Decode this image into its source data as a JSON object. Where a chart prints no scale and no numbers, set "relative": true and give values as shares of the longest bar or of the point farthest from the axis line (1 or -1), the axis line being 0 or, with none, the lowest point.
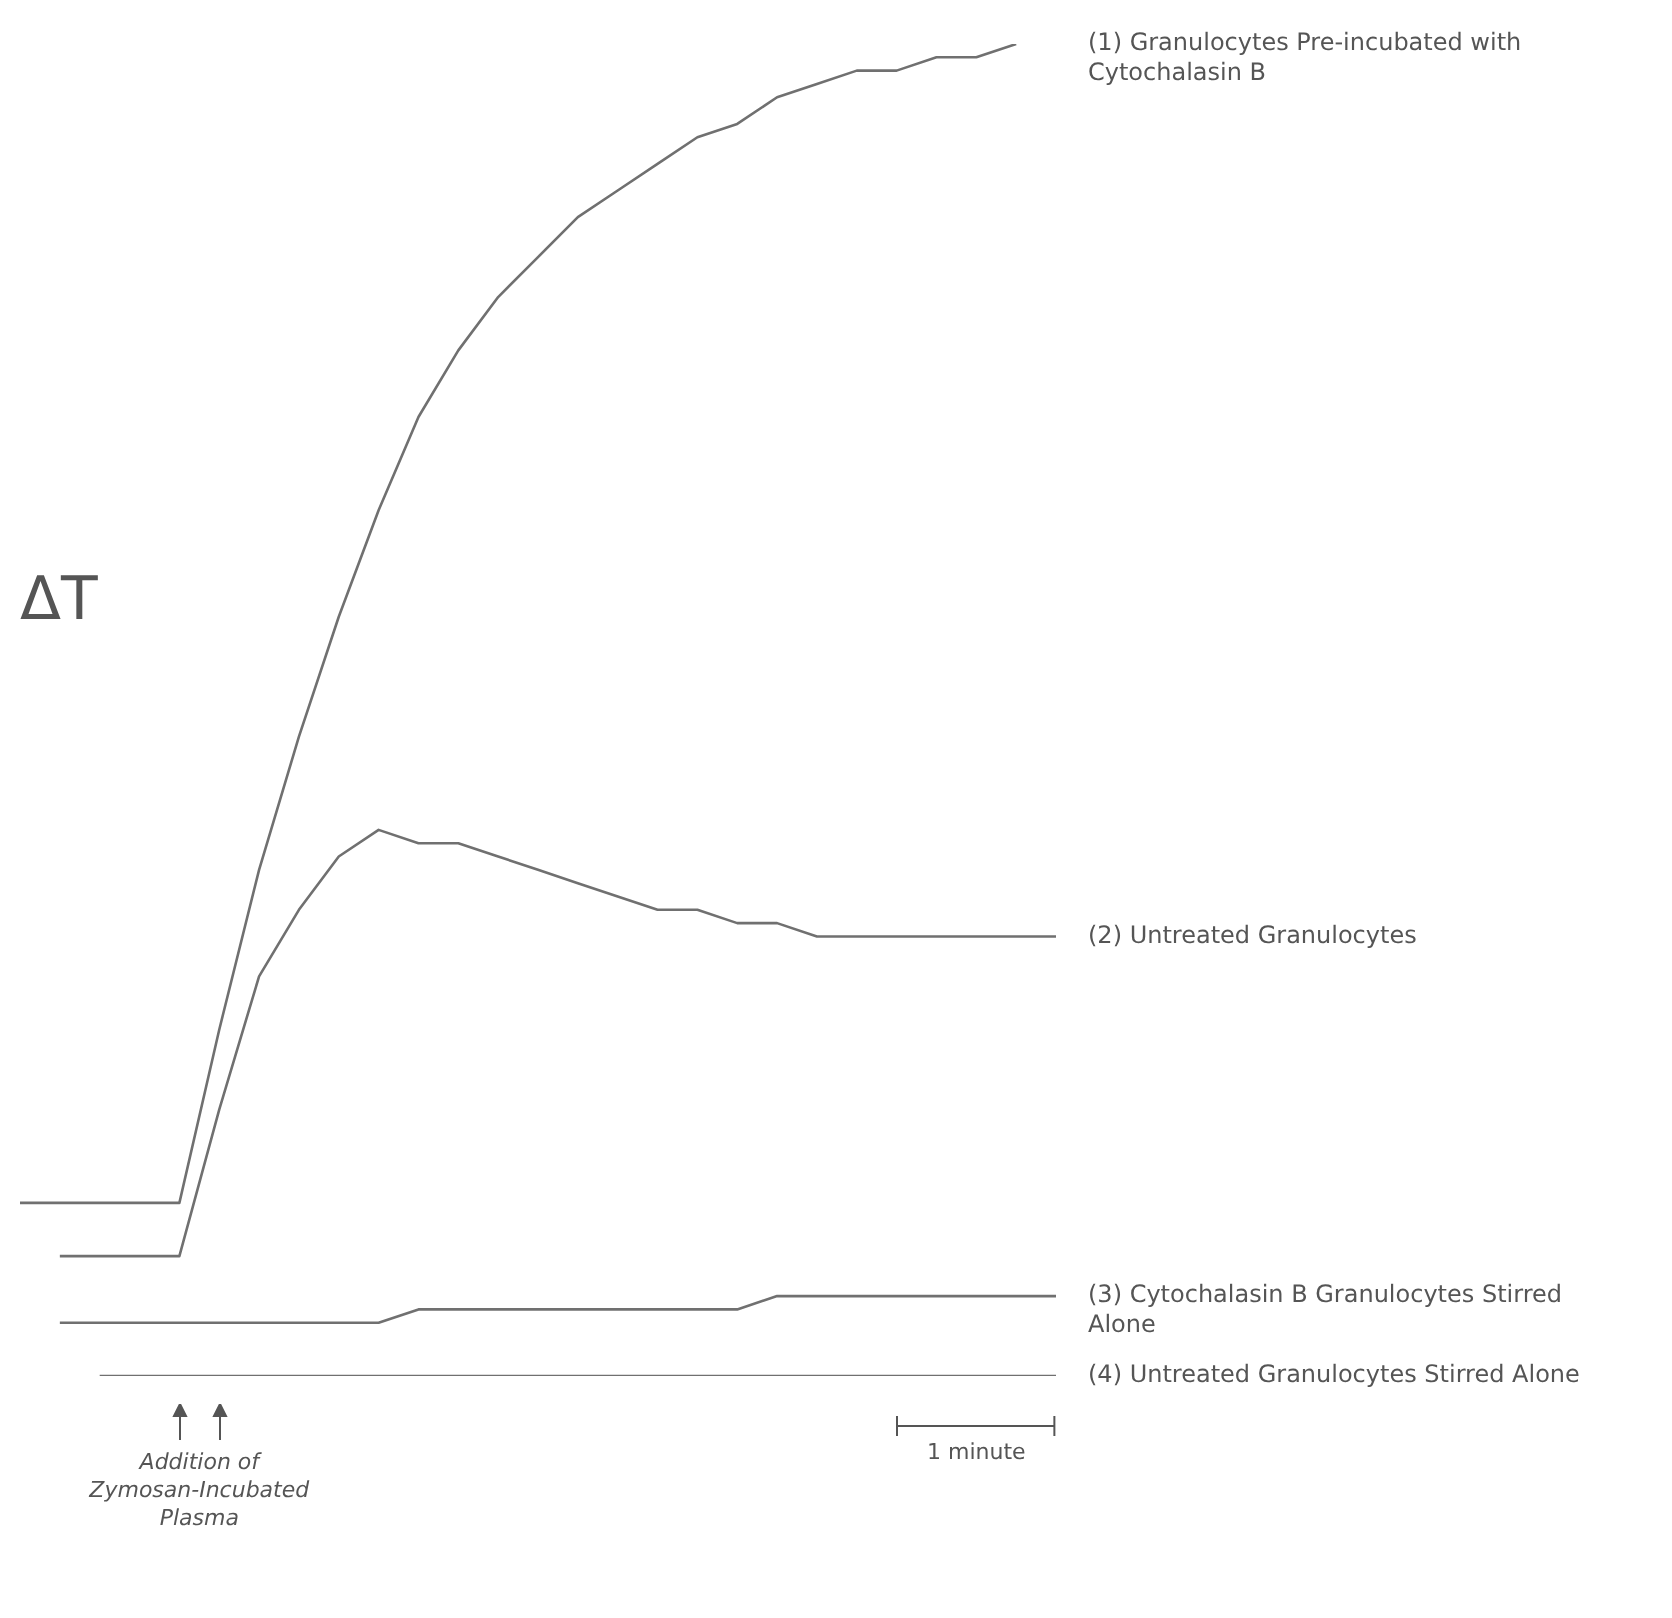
{
  "chart_data": {
    "type": "line",
    "relative": true,
    "ylabel": "ΔT",
    "legend": false,
    "grid": false,
    "marker": "none",
    "categories": [
      null,
      null,
      null,
      null,
      null,
      null,
      null,
      null,
      null,
      null,
      null,
      null,
      null,
      null,
      null,
      null,
      null,
      null,
      null,
      null,
      null,
      null,
      null,
      null,
      null,
      null,
      null
    ],
    "series": [
      {
        "name": "(1) Granulocytes Pre-incubated with Cytochalasin B",
        "color": "#707070",
        "values": [
          0.13,
          0.13,
          0.13,
          0.13,
          0.13,
          0.26,
          0.38,
          0.48,
          0.57,
          0.65,
          0.72,
          0.77,
          0.81,
          0.84,
          0.87,
          0.89,
          0.91,
          0.93,
          0.94,
          0.96,
          0.97,
          0.98,
          0.98,
          0.99,
          0.99,
          1,
          null
        ]
      },
      {
        "name": "(2) Untreated Granulocytes",
        "color": "#707070",
        "values": [
          null,
          0.09,
          0.09,
          0.09,
          0.09,
          0.2,
          0.3,
          0.35,
          0.39,
          0.41,
          0.4,
          0.4,
          0.39,
          0.38,
          0.37,
          0.36,
          0.35,
          0.35,
          0.34,
          0.34,
          0.33,
          0.33,
          0.33,
          0.33,
          0.33,
          0.33,
          0.33
        ]
      },
      {
        "name": "(3) Cytochalasin B Granulocytes Stirred Alone",
        "color": "#707070",
        "values": [
          null,
          0.04,
          0.04,
          0.04,
          0.04,
          0.04,
          0.04,
          0.04,
          0.04,
          0.04,
          0.05,
          0.05,
          0.05,
          0.05,
          0.05,
          0.05,
          0.05,
          0.05,
          0.05,
          0.06,
          0.06,
          0.06,
          0.06,
          0.06,
          0.06,
          0.06,
          0.06
        ]
      },
      {
        "name": "(4) Untreated Granulocytes Stirred Alone",
        "color": "#707070",
        "values": [
          null,
          null,
          0,
          0,
          0,
          0,
          0,
          0,
          0,
          0,
          0,
          0,
          0,
          0,
          0,
          0,
          0,
          0,
          0,
          0,
          0,
          0,
          0,
          0,
          0,
          0,
          0
        ]
      }
    ],
    "annotations": [
      "Addition of Zymosan-Incubated Plasma",
      "1 minute"
    ]
  }
}
